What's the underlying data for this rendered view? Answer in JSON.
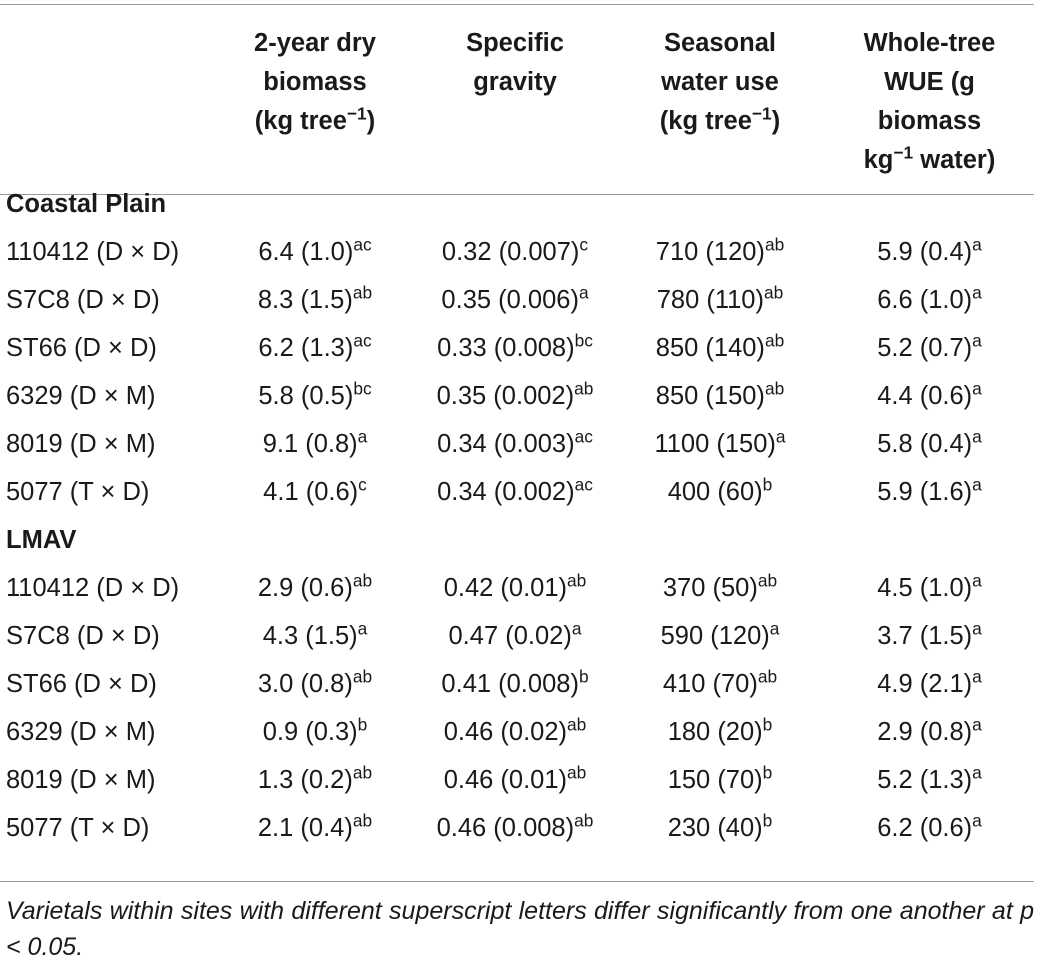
{
  "headers": [
    {
      "line1": "",
      "line2": "",
      "line3": "",
      "line4": ""
    },
    {
      "line1": "2-year dry",
      "line2": "biomass",
      "line3": "(kg tree",
      "sup3": "−1",
      "line3b": ")",
      "line4": ""
    },
    {
      "line1": "Specific",
      "line2": "gravity",
      "line3": "",
      "sup3": "",
      "line3b": "",
      "line4": ""
    },
    {
      "line1": "Seasonal",
      "line2": "water use",
      "line3": "(kg tree",
      "sup3": "−1",
      "line3b": ")",
      "line4": ""
    },
    {
      "line1": "Whole-tree",
      "line2": "WUE (g",
      "line3": "biomass",
      "sup3": "",
      "line3b": "",
      "line4": "kg",
      "sup4": "−1",
      "line4b": " water)"
    }
  ],
  "sections": [
    {
      "title": "Coastal Plain",
      "rows": [
        {
          "name": "110412 (D × D)",
          "cells": [
            [
              "6.4 (1.0)",
              "ac"
            ],
            [
              "0.32 (0.007)",
              "c"
            ],
            [
              "710 (120)",
              "ab"
            ],
            [
              "5.9 (0.4)",
              "a"
            ]
          ]
        },
        {
          "name": "S7C8 (D × D)",
          "cells": [
            [
              "8.3 (1.5)",
              "ab"
            ],
            [
              "0.35 (0.006)",
              "a"
            ],
            [
              "780 (110)",
              "ab"
            ],
            [
              "6.6 (1.0)",
              "a"
            ]
          ]
        },
        {
          "name": "ST66 (D × D)",
          "cells": [
            [
              "6.2 (1.3)",
              "ac"
            ],
            [
              "0.33 (0.008)",
              "bc"
            ],
            [
              "850 (140)",
              "ab"
            ],
            [
              "5.2 (0.7)",
              "a"
            ]
          ]
        },
        {
          "name": "6329 (D × M)",
          "cells": [
            [
              "5.8 (0.5)",
              "bc"
            ],
            [
              "0.35 (0.002)",
              "ab"
            ],
            [
              "850 (150)",
              "ab"
            ],
            [
              "4.4 (0.6)",
              "a"
            ]
          ]
        },
        {
          "name": "8019 (D × M)",
          "cells": [
            [
              "9.1 (0.8)",
              "a"
            ],
            [
              "0.34 (0.003)",
              "ac"
            ],
            [
              "1100 (150)",
              "a"
            ],
            [
              "5.8 (0.4)",
              "a"
            ]
          ]
        },
        {
          "name": "5077 (T × D)",
          "cells": [
            [
              "4.1 (0.6)",
              "c"
            ],
            [
              "0.34 (0.002)",
              "ac"
            ],
            [
              "400 (60)",
              "b"
            ],
            [
              "5.9 (1.6)",
              "a"
            ]
          ]
        }
      ]
    },
    {
      "title": "LMAV",
      "rows": [
        {
          "name": "110412 (D × D)",
          "cells": [
            [
              "2.9 (0.6)",
              "ab"
            ],
            [
              "0.42 (0.01)",
              "ab"
            ],
            [
              "370 (50)",
              "ab"
            ],
            [
              "4.5 (1.0)",
              "a"
            ]
          ]
        },
        {
          "name": "S7C8 (D × D)",
          "cells": [
            [
              "4.3 (1.5)",
              "a"
            ],
            [
              "0.47 (0.02)",
              "a"
            ],
            [
              "590 (120)",
              "a"
            ],
            [
              "3.7 (1.5)",
              "a"
            ]
          ]
        },
        {
          "name": "ST66 (D × D)",
          "cells": [
            [
              "3.0 (0.8)",
              "ab"
            ],
            [
              "0.41 (0.008)",
              "b"
            ],
            [
              "410 (70)",
              "ab"
            ],
            [
              "4.9 (2.1)",
              "a"
            ]
          ]
        },
        {
          "name": "6329 (D × M)",
          "cells": [
            [
              "0.9 (0.3)",
              "b"
            ],
            [
              "0.46 (0.02)",
              "ab"
            ],
            [
              "180 (20)",
              "b"
            ],
            [
              "2.9 (0.8)",
              "a"
            ]
          ]
        },
        {
          "name": "8019 (D × M)",
          "cells": [
            [
              "1.3 (0.2)",
              "ab"
            ],
            [
              "0.46 (0.01)",
              "ab"
            ],
            [
              "150 (70)",
              "b"
            ],
            [
              "5.2 (1.3)",
              "a"
            ]
          ]
        },
        {
          "name": "5077 (T × D)",
          "cells": [
            [
              "2.1 (0.4)",
              "ab"
            ],
            [
              "0.46 (0.008)",
              "ab"
            ],
            [
              "230 (40)",
              "b"
            ],
            [
              "6.2 (0.6)",
              "a"
            ]
          ]
        }
      ]
    }
  ],
  "footnote": "Varietals within sites with different superscript letters differ significantly from one another at p < 0.05."
}
